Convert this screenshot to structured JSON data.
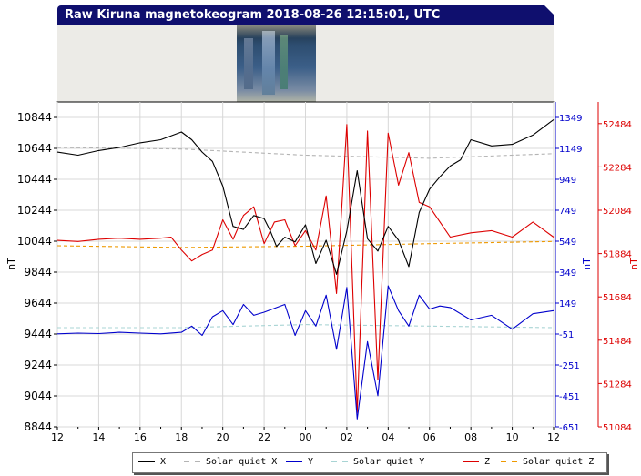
{
  "title": "Raw Kiruna magnetokeogram 2018-08-26 12:15:01, UTC",
  "colors": {
    "X": "#000000",
    "solar_quiet_X": "#b4b4b4",
    "Y": "#0000cc",
    "solar_quiet_Y": "#a8d4d4",
    "Z": "#dd0000",
    "solar_quiet_Z": "#ee9900",
    "left_axis": "#000000",
    "right_axis1": "#0000cc",
    "right_axis2": "#dd0000",
    "grid": "#d8d8d8",
    "title_bg": "#0f0f6e"
  },
  "legend": [
    {
      "key": "X",
      "label": "X"
    },
    {
      "key": "solar_quiet_X",
      "label": "Solar quiet X"
    },
    {
      "key": "Y",
      "label": "Y"
    },
    {
      "key": "solar_quiet_Y",
      "label": "Solar quiet Y"
    },
    {
      "key": "Z",
      "label": "Z"
    },
    {
      "key": "solar_quiet_Z",
      "label": "Solar quiet Z"
    }
  ],
  "chart_data": {
    "type": "line",
    "title": "Raw Kiruna magnetokeogram 2018-08-26 12:15:01, UTC",
    "x_ticks": [
      "12",
      "14",
      "16",
      "18",
      "20",
      "22",
      "00",
      "02",
      "04",
      "06",
      "08",
      "10",
      "12"
    ],
    "xlim": [
      0,
      24
    ],
    "grid": true,
    "legend_position": "bottom",
    "axes": {
      "left": {
        "label": "nT",
        "ylim": [
          8844,
          10944
        ],
        "ticks": [
          8844,
          9044,
          9244,
          9444,
          9644,
          9844,
          10044,
          10244,
          10444,
          10644,
          10844
        ]
      },
      "right1": {
        "label": "nT",
        "ylim": [
          -651,
          1449
        ],
        "ticks": [
          -651,
          -451,
          -251,
          -51,
          149,
          349,
          549,
          749,
          949,
          1149,
          1349
        ]
      },
      "right2": {
        "label": "nT",
        "ylim": [
          51084,
          52584
        ],
        "ticks": [
          51084,
          51284,
          51484,
          51684,
          51884,
          52084,
          52284,
          52484
        ]
      }
    },
    "series": [
      {
        "name": "X",
        "axis": "left",
        "x": [
          0,
          1,
          2,
          3,
          4,
          5,
          6,
          6.5,
          7,
          7.5,
          8,
          8.5,
          9,
          9.5,
          10,
          10.3,
          10.6,
          11,
          11.5,
          12,
          12.5,
          13,
          13.5,
          14,
          14.5,
          15,
          15.5,
          16,
          16.5,
          17,
          17.5,
          18,
          18.5,
          19,
          19.5,
          20,
          21,
          22,
          23,
          24
        ],
        "y": [
          10620,
          10600,
          10630,
          10650,
          10680,
          10700,
          10750,
          10700,
          10620,
          10560,
          10400,
          10140,
          10120,
          10210,
          10190,
          10110,
          10010,
          10070,
          10040,
          10150,
          9900,
          10050,
          9830,
          10110,
          10500,
          10060,
          9980,
          10140,
          10050,
          9880,
          10230,
          10380,
          10460,
          10530,
          10570,
          10700,
          10660,
          10670,
          10730,
          10830
        ]
      },
      {
        "name": "Solar quiet X",
        "axis": "left",
        "dashed": true,
        "x": [
          0,
          6,
          12,
          18,
          24
        ],
        "y": [
          10650,
          10640,
          10600,
          10580,
          10610
        ]
      },
      {
        "name": "Y",
        "axis": "right1",
        "x": [
          0,
          1,
          2,
          3,
          4,
          5,
          6,
          6.5,
          7,
          7.5,
          8,
          8.5,
          9,
          9.5,
          10,
          11,
          11.5,
          12,
          12.5,
          13,
          13.5,
          14,
          14.5,
          15,
          15.5,
          16,
          16.5,
          17,
          17.5,
          18,
          18.5,
          19,
          20,
          21,
          22,
          23,
          24
        ],
        "y": [
          -50,
          -45,
          -48,
          -40,
          -45,
          -50,
          -40,
          0,
          -60,
          60,
          100,
          10,
          140,
          70,
          90,
          140,
          -60,
          100,
          0,
          200,
          -150,
          250,
          -600,
          -100,
          -450,
          260,
          100,
          0,
          200,
          110,
          130,
          120,
          40,
          70,
          -20,
          80,
          100
        ]
      },
      {
        "name": "Solar quiet Y",
        "axis": "right1",
        "dashed": true,
        "x": [
          0,
          6,
          12,
          18,
          24
        ],
        "y": [
          -10,
          -10,
          10,
          0,
          -10
        ]
      },
      {
        "name": "Z",
        "axis": "right2",
        "x": [
          0,
          1,
          2,
          3,
          4,
          5,
          5.5,
          6,
          6.5,
          7,
          7.5,
          8,
          8.5,
          9,
          9.5,
          10,
          10.5,
          11,
          11.5,
          12,
          12.5,
          13,
          13.5,
          14,
          14.5,
          15,
          15.5,
          16,
          16.5,
          17,
          17.5,
          18,
          19,
          20,
          21,
          22,
          23,
          24
        ],
        "y": [
          51945,
          51940,
          51950,
          51955,
          51950,
          51955,
          51960,
          51900,
          51850,
          51880,
          51900,
          52040,
          51950,
          52060,
          52100,
          51930,
          52030,
          52040,
          51920,
          51990,
          51900,
          52150,
          51700,
          52480,
          51150,
          52450,
          51300,
          52440,
          52200,
          52350,
          52120,
          52100,
          51960,
          51980,
          51990,
          51960,
          52030,
          51960
        ]
      },
      {
        "name": "Solar quiet Z",
        "axis": "right2",
        "dashed": true,
        "x": [
          0,
          6,
          12,
          18,
          24
        ],
        "y": [
          51920,
          51912,
          51918,
          51930,
          51940
        ]
      }
    ]
  }
}
